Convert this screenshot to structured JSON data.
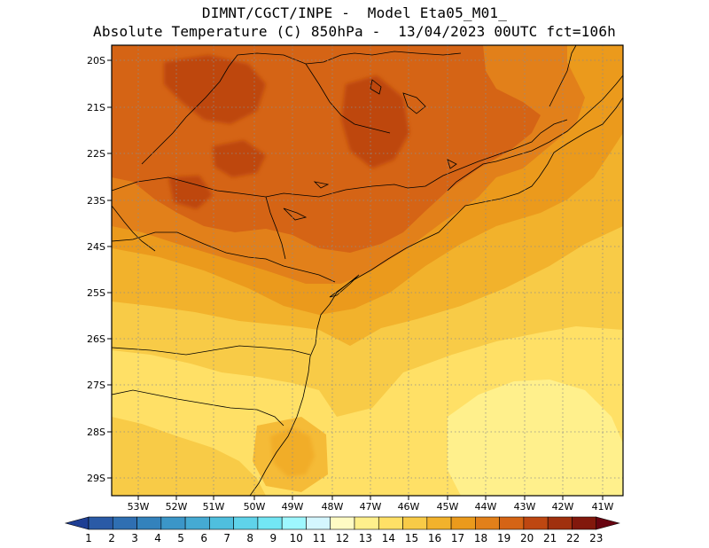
{
  "header": {
    "line1": "DIMNT/CGCT/INPE -  Model Eta05_M01_",
    "line2": "Absolute Temperature (C) 850hPa -  13/04/2023 00UTC fct=106h"
  },
  "axes": {
    "lon_labels": [
      "53W",
      "52W",
      "51W",
      "50W",
      "49W",
      "48W",
      "47W",
      "46W",
      "45W",
      "44W",
      "43W",
      "42W",
      "41W"
    ],
    "lat_labels": [
      "20S",
      "21S",
      "22S",
      "23S",
      "24S",
      "25S",
      "26S",
      "27S",
      "28S",
      "29S"
    ]
  },
  "colorbar": {
    "labels": [
      "1",
      "2",
      "3",
      "4",
      "5",
      "6",
      "7",
      "8",
      "9",
      "10",
      "11",
      "12",
      "13",
      "14",
      "15",
      "16",
      "17",
      "18",
      "19",
      "20",
      "21",
      "22",
      "23"
    ],
    "colors": [
      "#1f3f94",
      "#2a5aa6",
      "#2f6fb2",
      "#3382bc",
      "#3b96c8",
      "#45aad3",
      "#4fbfde",
      "#5fd3ea",
      "#72e6f4",
      "#9ef7ff",
      "#d4f6ff",
      "#fffbc4",
      "#fff08c",
      "#ffe066",
      "#f8cb47",
      "#f2b22c",
      "#eb9a1c",
      "#e2801a",
      "#d56415",
      "#be4711",
      "#a0300e",
      "#82180c",
      "#680410"
    ]
  }
}
